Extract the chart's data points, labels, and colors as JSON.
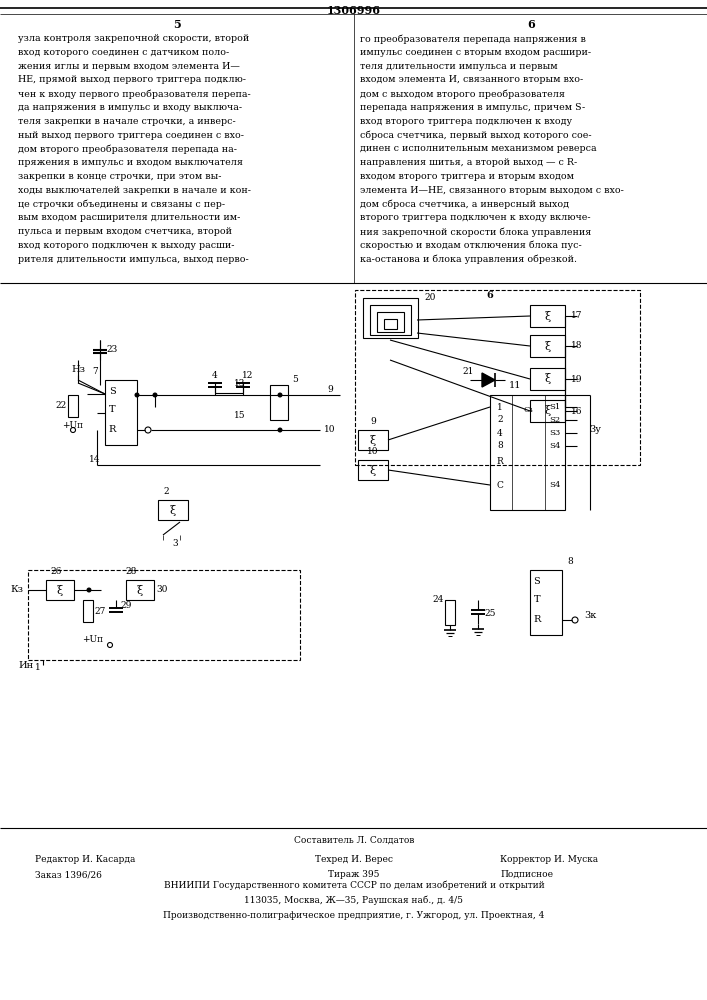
{
  "title": "1306996",
  "bg_color": "#ffffff",
  "col1_text": [
    "узла контроля закрепочной скорости, второй",
    "вход которого соединен с датчиком поло-",
    "жения иглы и первым входом элемента И—",
    "НЕ, прямой выход первого триггера подклю-",
    "чен к входу первого преобразователя перепа-",
    "да напряжения в импульс и входу выключа-",
    "теля закрепки в начале строчки, а инверс-",
    "ный выход первого триггера соединен с вхо-",
    "дом второго преобразователя перепада на-",
    "пряжения в импульс и входом выключателя",
    "закрепки в конце строчки, при этом вы-",
    "ходы выключателей закрепки в начале и кон-",
    "це строчки объединены и связаны с пер-",
    "вым входом расширителя длительности им-",
    "пульса и первым входом счетчика, второй",
    "вход которого подключен к выходу расши-",
    "рителя длительности импульса, выход перво-"
  ],
  "col2_text": [
    "го преобразователя перепада напряжения в",
    "импульс соединен с вторым входом расшири-",
    "теля длительности импульса и первым",
    "входом элемента И, связанного вторым вхо-",
    "дом с выходом второго преобразователя",
    "перепада напряжения в импульс, причем S-",
    "вход второго триггера подключен к входу",
    "сброса счетчика, первый выход которого сое-",
    "динен с исполнительным механизмом реверса",
    "направления шитья, а второй выход — с R-",
    "входом второго триггера и вторым входом",
    "элемента И—НЕ, связанного вторым выходом с вхо-",
    "дом сброса счетчика, а инверсный выход",
    "второго триггера подключен к входу включе-",
    "ния закрепочной скорости блока управления",
    "скоростью и входам отключения блока пус-",
    "ка-останова и блока управления обрезкой."
  ],
  "footer_lines": [
    [
      "center",
      "Составитель Л. Солдатов"
    ],
    [
      "left",
      "Редактор И. Касарда"
    ],
    [
      "left",
      "Заказ 1396/26"
    ],
    [
      "center",
      "ВНИИПИ Государственного комитета СССР по делам изобретений и открытий"
    ],
    [
      "center",
      "113035, Москва, Ж—35, Раушская наб., д. 4/5"
    ],
    [
      "center",
      "Производственно-полиграфическое предприятие, г. Ужгород, ул. Проектная, 4"
    ]
  ]
}
